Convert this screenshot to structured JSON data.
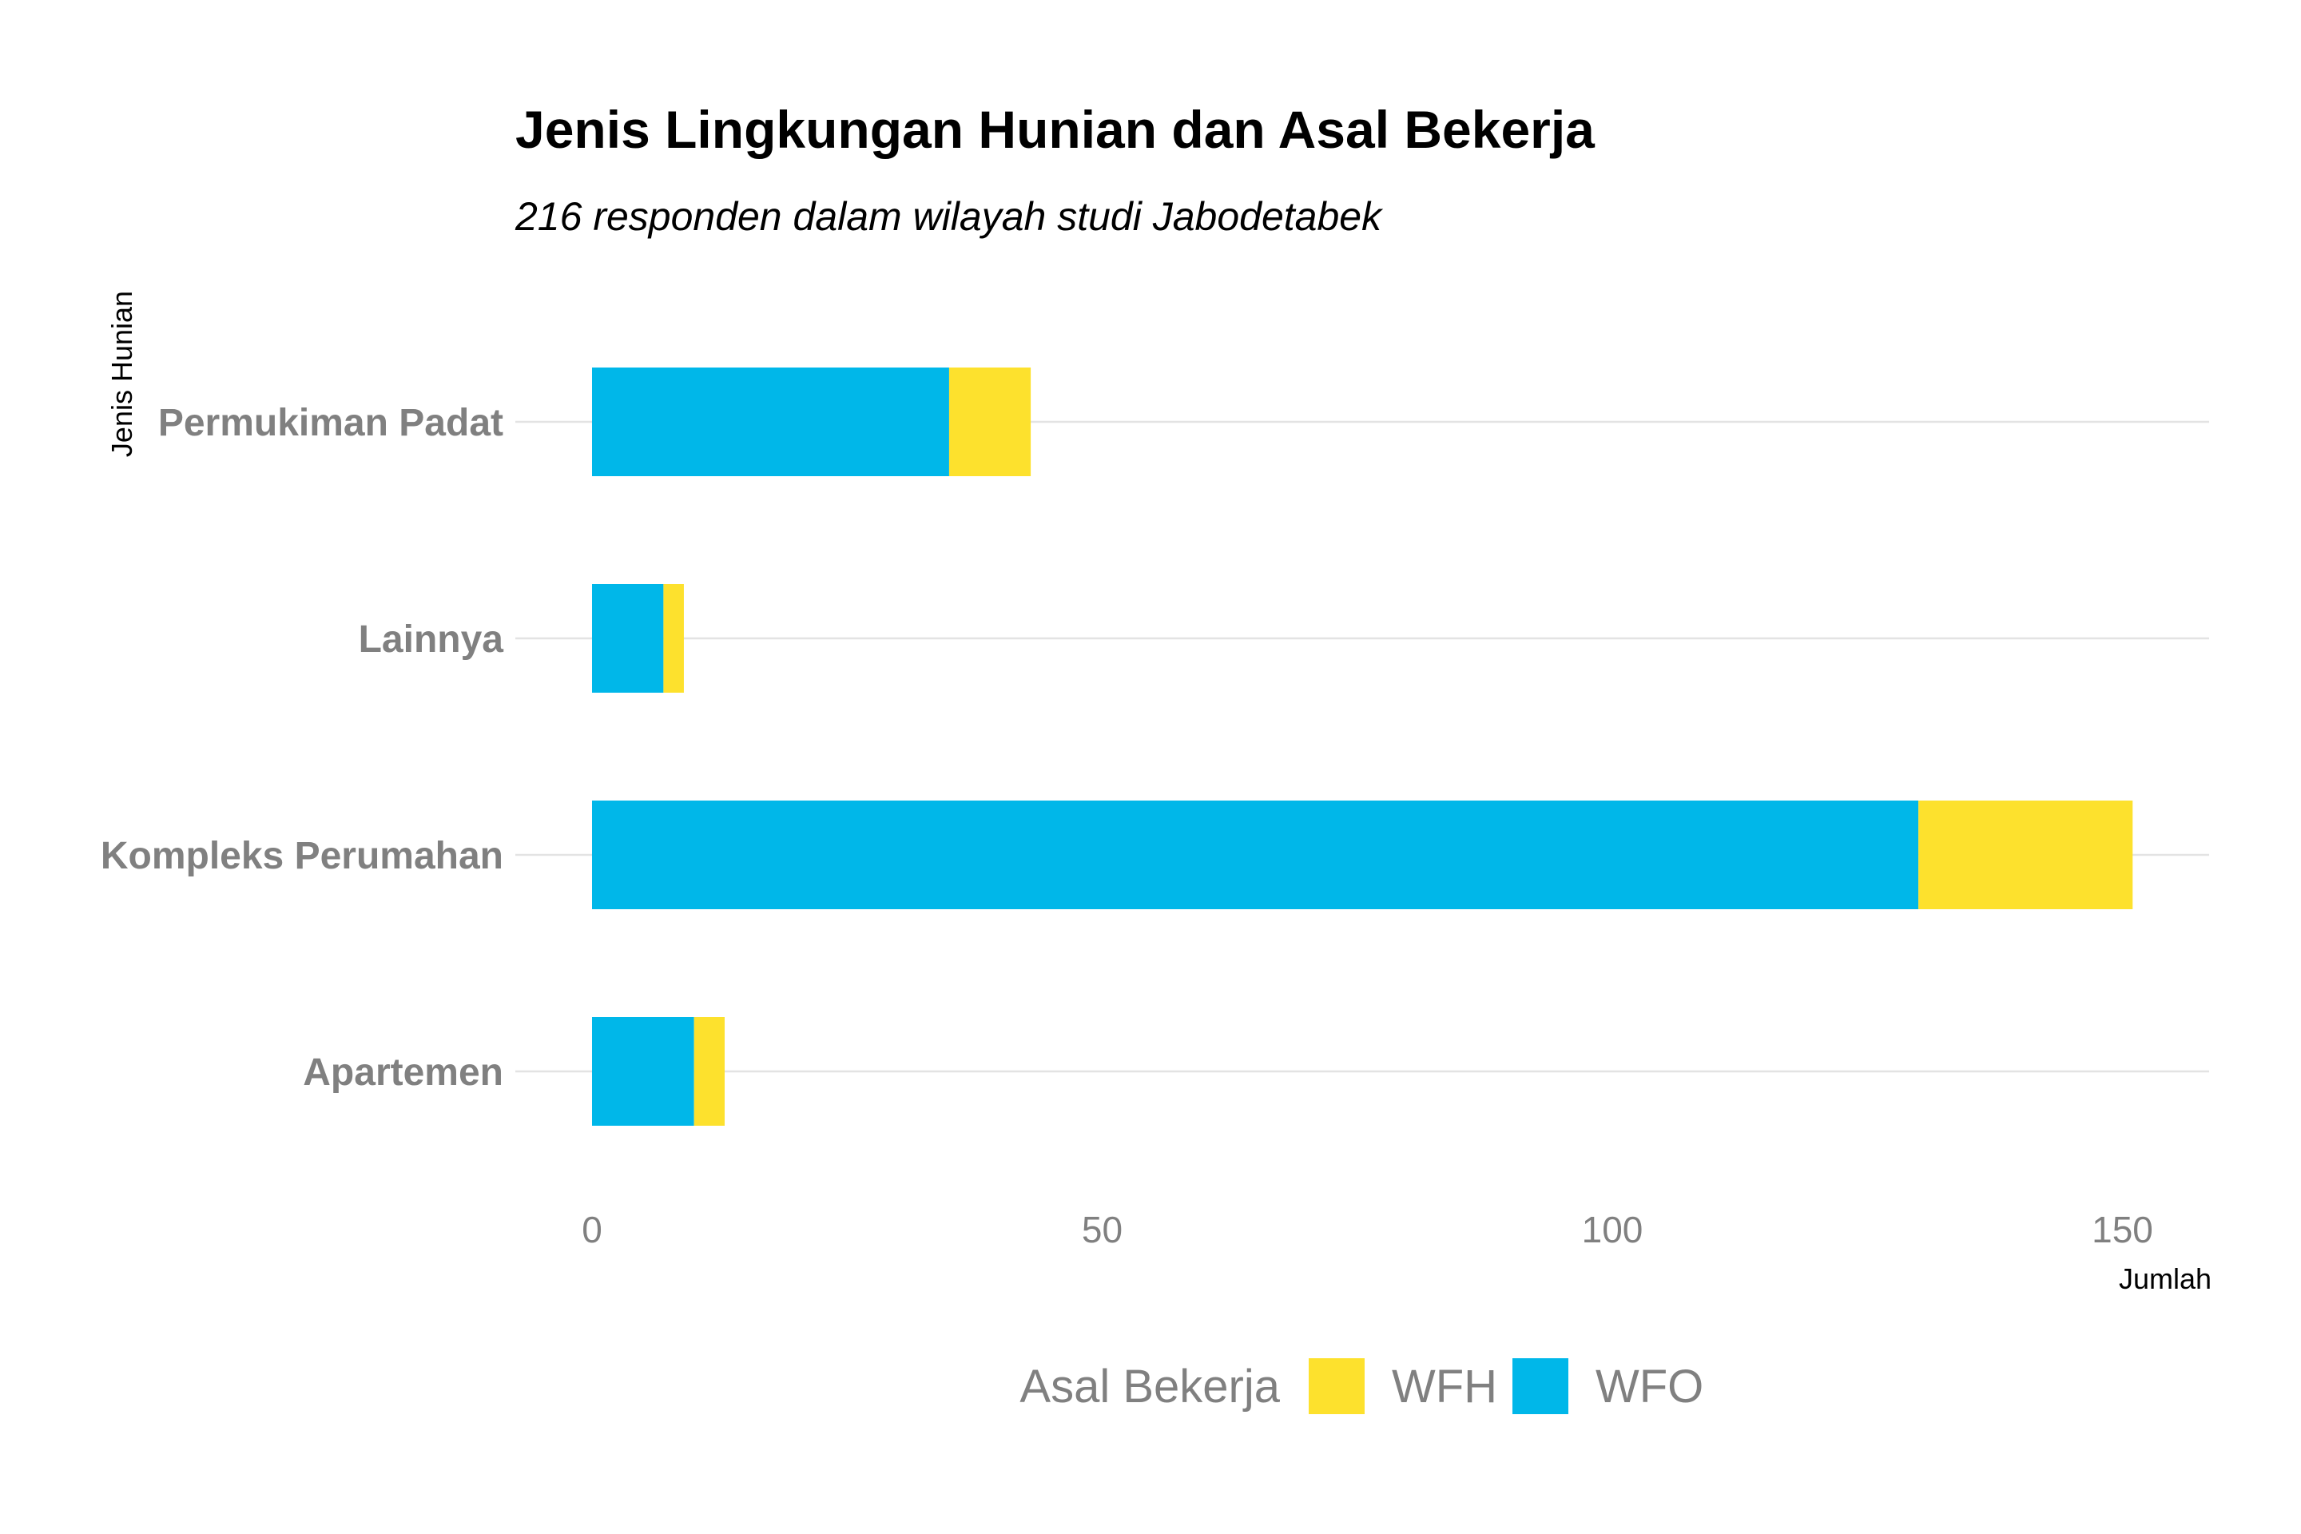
{
  "chart_data": {
    "type": "bar",
    "orientation": "horizontal",
    "stacked": true,
    "title": "Jenis Lingkungan Hunian dan Asal Bekerja",
    "subtitle": "216 responden dalam wilayah studi Jabodetabek",
    "xlabel": "Jumlah",
    "ylabel": "Jenis Hunian",
    "xlim": [
      0,
      158
    ],
    "xticks": [
      0,
      50,
      100,
      150
    ],
    "xtick_labels": [
      "0",
      "50",
      "100",
      "150"
    ],
    "categories": [
      "Permukiman Padat",
      "Lainnya",
      "Kompleks Perumahan",
      "Apartemen"
    ],
    "series": [
      {
        "name": "WFO",
        "color": "#00b7e9",
        "values": [
          35,
          7,
          130,
          10
        ]
      },
      {
        "name": "WFH",
        "color": "#fde12d",
        "values": [
          8,
          2,
          21,
          3
        ]
      }
    ],
    "legend": {
      "title": "Asal Bekerja",
      "position": "bottom",
      "items": [
        {
          "label": "WFH",
          "color": "#fde12d"
        },
        {
          "label": "WFO",
          "color": "#00b7e9"
        }
      ]
    },
    "grid": true
  }
}
